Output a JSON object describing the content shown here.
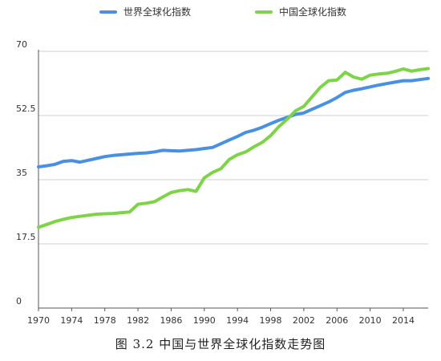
{
  "chart_data": {
    "type": "line",
    "title": "",
    "xlabel": "",
    "ylabel": "",
    "ylim": [
      0,
      70
    ],
    "xlim": [
      1970,
      2017
    ],
    "y_ticks": [
      "0",
      "17.5",
      "35",
      "52.5",
      "70"
    ],
    "x_ticks": [
      "1970",
      "1974",
      "1978",
      "1982",
      "1986",
      "1990",
      "1994",
      "1998",
      "2002",
      "2006",
      "2010",
      "2014"
    ],
    "grid": true,
    "legend_position": "top",
    "series": [
      {
        "name": "世界全球化指数",
        "color": "#4a90e2",
        "x": [
          1970,
          1971,
          1972,
          1973,
          1974,
          1975,
          1976,
          1977,
          1978,
          1979,
          1980,
          1981,
          1982,
          1983,
          1984,
          1985,
          1986,
          1987,
          1988,
          1989,
          1990,
          1991,
          1992,
          1993,
          1994,
          1995,
          1996,
          1997,
          1998,
          1999,
          2000,
          2001,
          2002,
          2003,
          2004,
          2005,
          2006,
          2007,
          2008,
          2009,
          2010,
          2011,
          2012,
          2013,
          2014,
          2015,
          2016,
          2017
        ],
        "values": [
          38.5,
          38.8,
          39.2,
          40.0,
          40.2,
          39.8,
          40.3,
          40.8,
          41.3,
          41.6,
          41.8,
          42.0,
          42.2,
          42.3,
          42.6,
          43.0,
          42.9,
          42.8,
          43.0,
          43.2,
          43.5,
          43.8,
          44.8,
          45.8,
          46.8,
          47.9,
          48.5,
          49.3,
          50.3,
          51.2,
          52.0,
          52.8,
          53.2,
          54.2,
          55.2,
          56.2,
          57.4,
          58.8,
          59.4,
          59.8,
          60.3,
          60.8,
          61.2,
          61.6,
          62.0,
          62.0,
          62.3,
          62.6
        ]
      },
      {
        "name": "中国全球化指数",
        "color": "#7ed348",
        "x": [
          1970,
          1971,
          1972,
          1973,
          1974,
          1975,
          1976,
          1977,
          1978,
          1979,
          1980,
          1981,
          1982,
          1983,
          1984,
          1985,
          1986,
          1987,
          1988,
          1989,
          1990,
          1991,
          1992,
          1993,
          1994,
          1995,
          1996,
          1997,
          1998,
          1999,
          2000,
          2001,
          2002,
          2003,
          2004,
          2005,
          2006,
          2007,
          2008,
          2009,
          2010,
          2011,
          2012,
          2013,
          2014,
          2015,
          2016,
          2017
        ],
        "values": [
          22.0,
          22.8,
          23.6,
          24.2,
          24.7,
          25.0,
          25.3,
          25.6,
          25.7,
          25.8,
          26.0,
          26.2,
          28.3,
          28.6,
          29.0,
          30.3,
          31.5,
          32.0,
          32.3,
          31.8,
          35.5,
          37.0,
          38.0,
          40.5,
          41.8,
          42.6,
          44.0,
          45.2,
          47.0,
          49.5,
          51.5,
          53.8,
          55.0,
          57.6,
          60.2,
          62.0,
          62.2,
          64.3,
          63.0,
          62.4,
          63.5,
          63.8,
          64.0,
          64.5,
          65.2,
          64.6,
          65.0,
          65.3
        ]
      }
    ]
  },
  "caption": "图 3.2 中国与世界全球化指数走势图"
}
